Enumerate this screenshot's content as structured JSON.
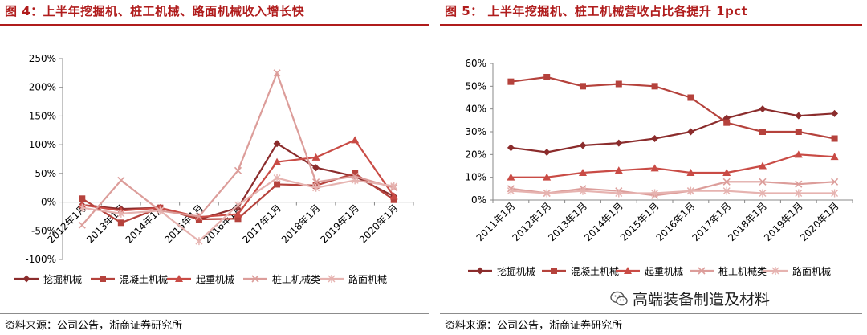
{
  "left": {
    "title": "图 4：上半年挖掘机、桩工机械、路面机械收入增长快",
    "source": "资料来源：公司公告，浙商证券研究所"
  },
  "right": {
    "title": "图 5：  上半年挖掘机、桩工机械营收占比各提升 1pct",
    "source": "资料来源：公司公告，浙商证券研究所"
  },
  "watermark": {
    "text": "高端装备制造及材料",
    "icon": "wechat-icon"
  },
  "chart_data": [
    {
      "type": "line",
      "x": [
        "2012年1月",
        "2013年1月",
        "2014年1月",
        "2015年1月",
        "2016年1月",
        "2017年1月",
        "2018年1月",
        "2019年1月",
        "2020年1月"
      ],
      "ylim": [
        -1.0,
        2.5
      ],
      "yticks": [
        -1.0,
        -0.5,
        0,
        0.5,
        1.0,
        1.5,
        2.0,
        2.5
      ],
      "ytick_labels": [
        "-100%",
        "-50%",
        "0%",
        "50%",
        "100%",
        "150%",
        "200%",
        "250%"
      ],
      "grid": false,
      "legend": "bottom",
      "series": [
        {
          "name": "挖掘机械",
          "marker": "diamond",
          "color": "#8b2c2c",
          "values": [
            -0.05,
            -0.12,
            -0.1,
            -0.3,
            -0.1,
            1.02,
            0.6,
            0.45,
            0.1
          ]
        },
        {
          "name": "混凝土机械",
          "marker": "square",
          "color": "#b5423c",
          "values": [
            0.06,
            -0.36,
            -0.1,
            -0.3,
            -0.29,
            0.31,
            0.29,
            0.5,
            0.04
          ]
        },
        {
          "name": "起重机械",
          "marker": "triangle",
          "color": "#c94b45",
          "values": [
            -0.05,
            -0.15,
            -0.1,
            -0.26,
            -0.21,
            0.7,
            0.78,
            1.08,
            0.1
          ]
        },
        {
          "name": "桩工机械类",
          "marker": "x",
          "color": "#dc9d9a",
          "values": [
            -0.4,
            0.38,
            -0.15,
            -0.25,
            0.55,
            2.25,
            0.35,
            0.45,
            0.25
          ]
        },
        {
          "name": "路面机械",
          "marker": "star",
          "color": "#e6b3b0",
          "values": [
            -0.1,
            -0.2,
            -0.15,
            -0.68,
            -0.05,
            0.42,
            0.25,
            0.38,
            0.28
          ]
        }
      ]
    },
    {
      "type": "line",
      "x": [
        "2011年1月",
        "2012年1月",
        "2013年1月",
        "2014年1月",
        "2015年1月",
        "2016年1月",
        "2017年1月",
        "2018年1月",
        "2019年1月",
        "2020年1月"
      ],
      "ylim": [
        0,
        0.6
      ],
      "yticks": [
        0,
        0.1,
        0.2,
        0.3,
        0.4,
        0.5,
        0.6
      ],
      "ytick_labels": [
        "0%",
        "10%",
        "20%",
        "30%",
        "40%",
        "50%",
        "60%"
      ],
      "grid": false,
      "legend": "bottom",
      "series": [
        {
          "name": "挖掘机械",
          "marker": "diamond",
          "color": "#8b2c2c",
          "values": [
            0.23,
            0.21,
            0.24,
            0.25,
            0.27,
            0.3,
            0.36,
            0.4,
            0.37,
            0.38
          ]
        },
        {
          "name": "混凝土机械",
          "marker": "square",
          "color": "#b5423c",
          "values": [
            0.52,
            0.54,
            0.5,
            0.51,
            0.5,
            0.45,
            0.34,
            0.3,
            0.3,
            0.27
          ]
        },
        {
          "name": "起重机械",
          "marker": "triangle",
          "color": "#c94b45",
          "values": [
            0.1,
            0.1,
            0.12,
            0.13,
            0.14,
            0.12,
            0.12,
            0.15,
            0.2,
            0.19
          ]
        },
        {
          "name": "桩工机械类",
          "marker": "x",
          "color": "#dc9d9a",
          "values": [
            0.05,
            0.03,
            0.05,
            0.04,
            0.02,
            0.04,
            0.08,
            0.08,
            0.07,
            0.08
          ]
        },
        {
          "name": "路面机械",
          "marker": "star",
          "color": "#e6b3b0",
          "values": [
            0.04,
            0.03,
            0.04,
            0.03,
            0.03,
            0.04,
            0.04,
            0.03,
            0.03,
            0.03
          ]
        }
      ]
    }
  ]
}
